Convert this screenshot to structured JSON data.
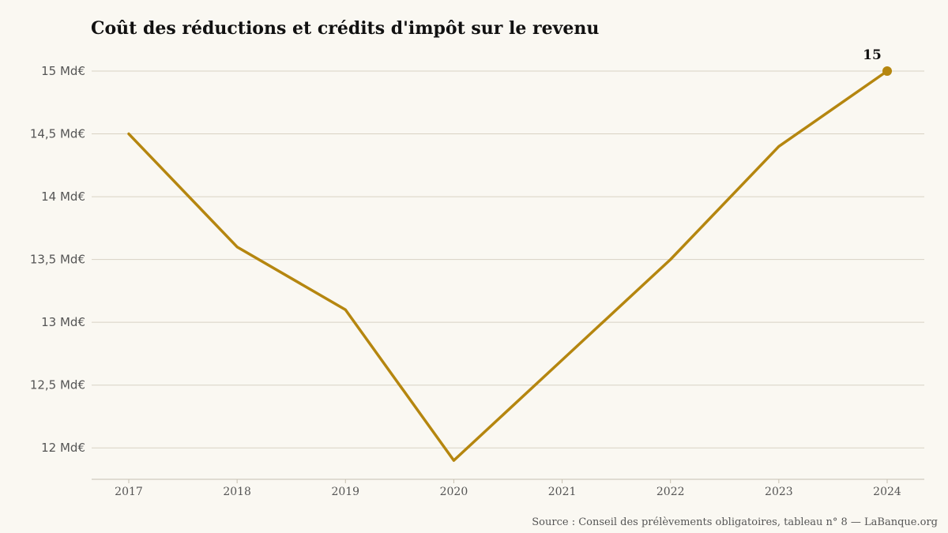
{
  "colors": {
    "background": "#faf8f2",
    "line": "#b5860f",
    "grid": "#d8d2c4",
    "axis": "#c7c0b1"
  },
  "chart_data": {
    "type": "line",
    "title": "Coût des réductions et crédits d'impôt sur le revenu",
    "x": [
      "2017",
      "2018",
      "2019",
      "2020",
      "2021",
      "2022",
      "2023",
      "2024"
    ],
    "series": [
      {
        "values": [
          14.5,
          13.6,
          13.1,
          11.9,
          12.7,
          13.5,
          14.4,
          15.0
        ]
      }
    ],
    "yticks": [
      12,
      12.5,
      13,
      13.5,
      14,
      14.5,
      15
    ],
    "ytick_labels": [
      "12 Md€",
      "12,5 Md€",
      "13 Md€",
      "13,5 Md€",
      "14 Md€",
      "14,5 Md€",
      "15 Md€"
    ],
    "ylim": [
      11.75,
      15.0
    ],
    "end_label": "15",
    "grid": true,
    "source": "Source : Conseil des prélèvements obligatoires, tableau n° 8 — LaBanque.org"
  }
}
